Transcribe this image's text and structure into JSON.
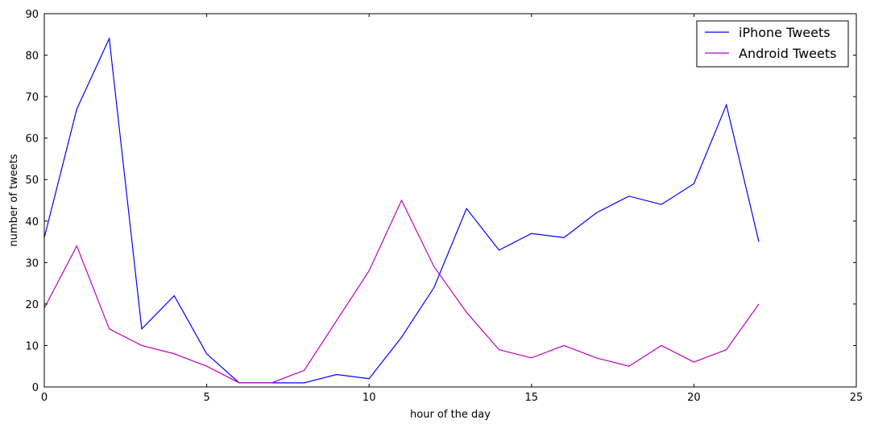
{
  "chart_data": {
    "type": "line",
    "xlabel": "hour of the day",
    "ylabel": "number of tweets",
    "xlim": [
      0,
      25
    ],
    "ylim": [
      0,
      90
    ],
    "xticks": [
      0,
      5,
      10,
      15,
      20,
      25
    ],
    "yticks": [
      0,
      10,
      20,
      30,
      40,
      50,
      60,
      70,
      80,
      90
    ],
    "grid": false,
    "legend_position": "top-right",
    "x": [
      0,
      1,
      2,
      3,
      4,
      5,
      6,
      7,
      8,
      9,
      10,
      11,
      12,
      13,
      14,
      15,
      16,
      17,
      18,
      19,
      20,
      21,
      22
    ],
    "series": [
      {
        "name": "iPhone Tweets",
        "color": "#0000ff",
        "values": [
          36,
          67,
          84,
          14,
          22,
          8,
          1,
          1,
          1,
          3,
          2,
          12,
          24,
          43,
          33,
          37,
          36,
          42,
          46,
          44,
          49,
          68,
          35
        ]
      },
      {
        "name": "Android Tweets",
        "color": "#bf00bf",
        "values": [
          19,
          34,
          14,
          10,
          8,
          5,
          1,
          1,
          4,
          16,
          28,
          45,
          29,
          18,
          9,
          7,
          10,
          7,
          5,
          10,
          6,
          9,
          20
        ]
      }
    ]
  }
}
